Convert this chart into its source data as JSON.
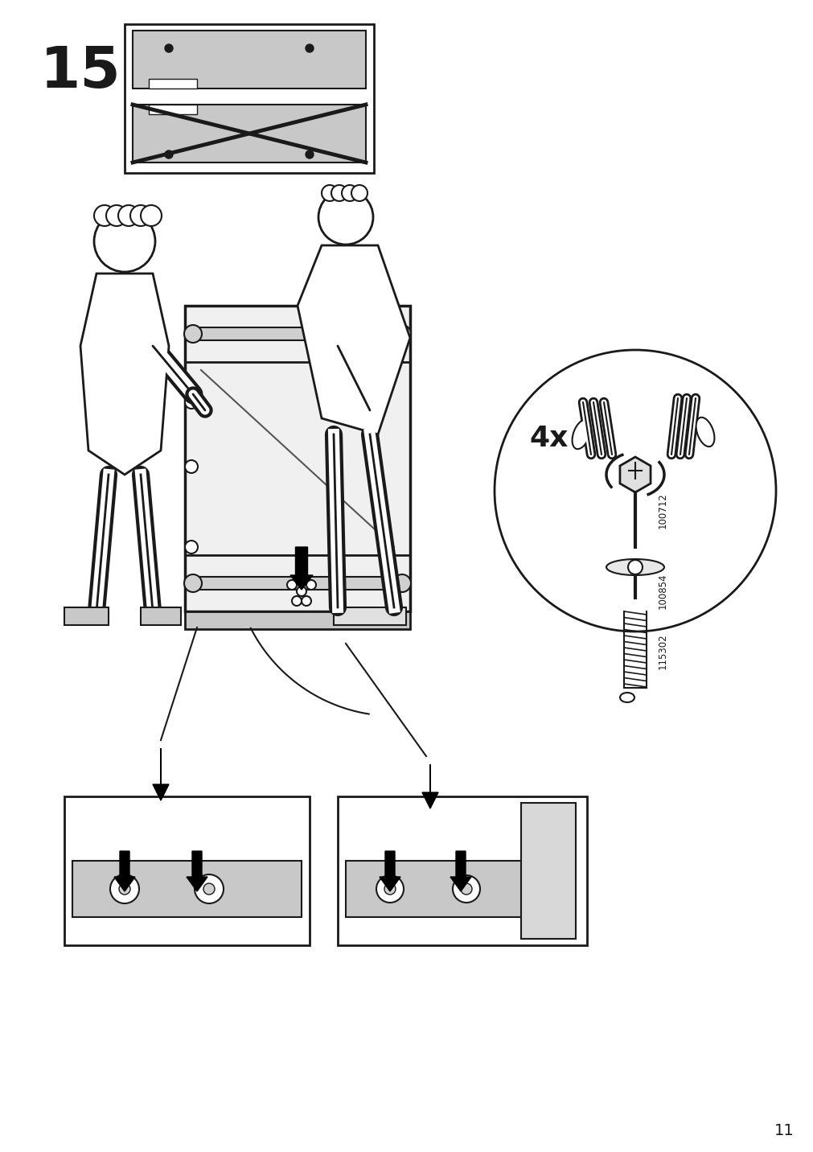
{
  "page_number": "11",
  "step_number": "15",
  "bg_color": "#ffffff",
  "line_color": "#1a1a1a",
  "gray_fill": "#c8c8c8",
  "dark_gray": "#888888",
  "part_numbers": [
    "100712",
    "100854",
    "115302"
  ],
  "quantity": "4x",
  "step_label_fontsize": 52,
  "page_number_fontsize": 14
}
